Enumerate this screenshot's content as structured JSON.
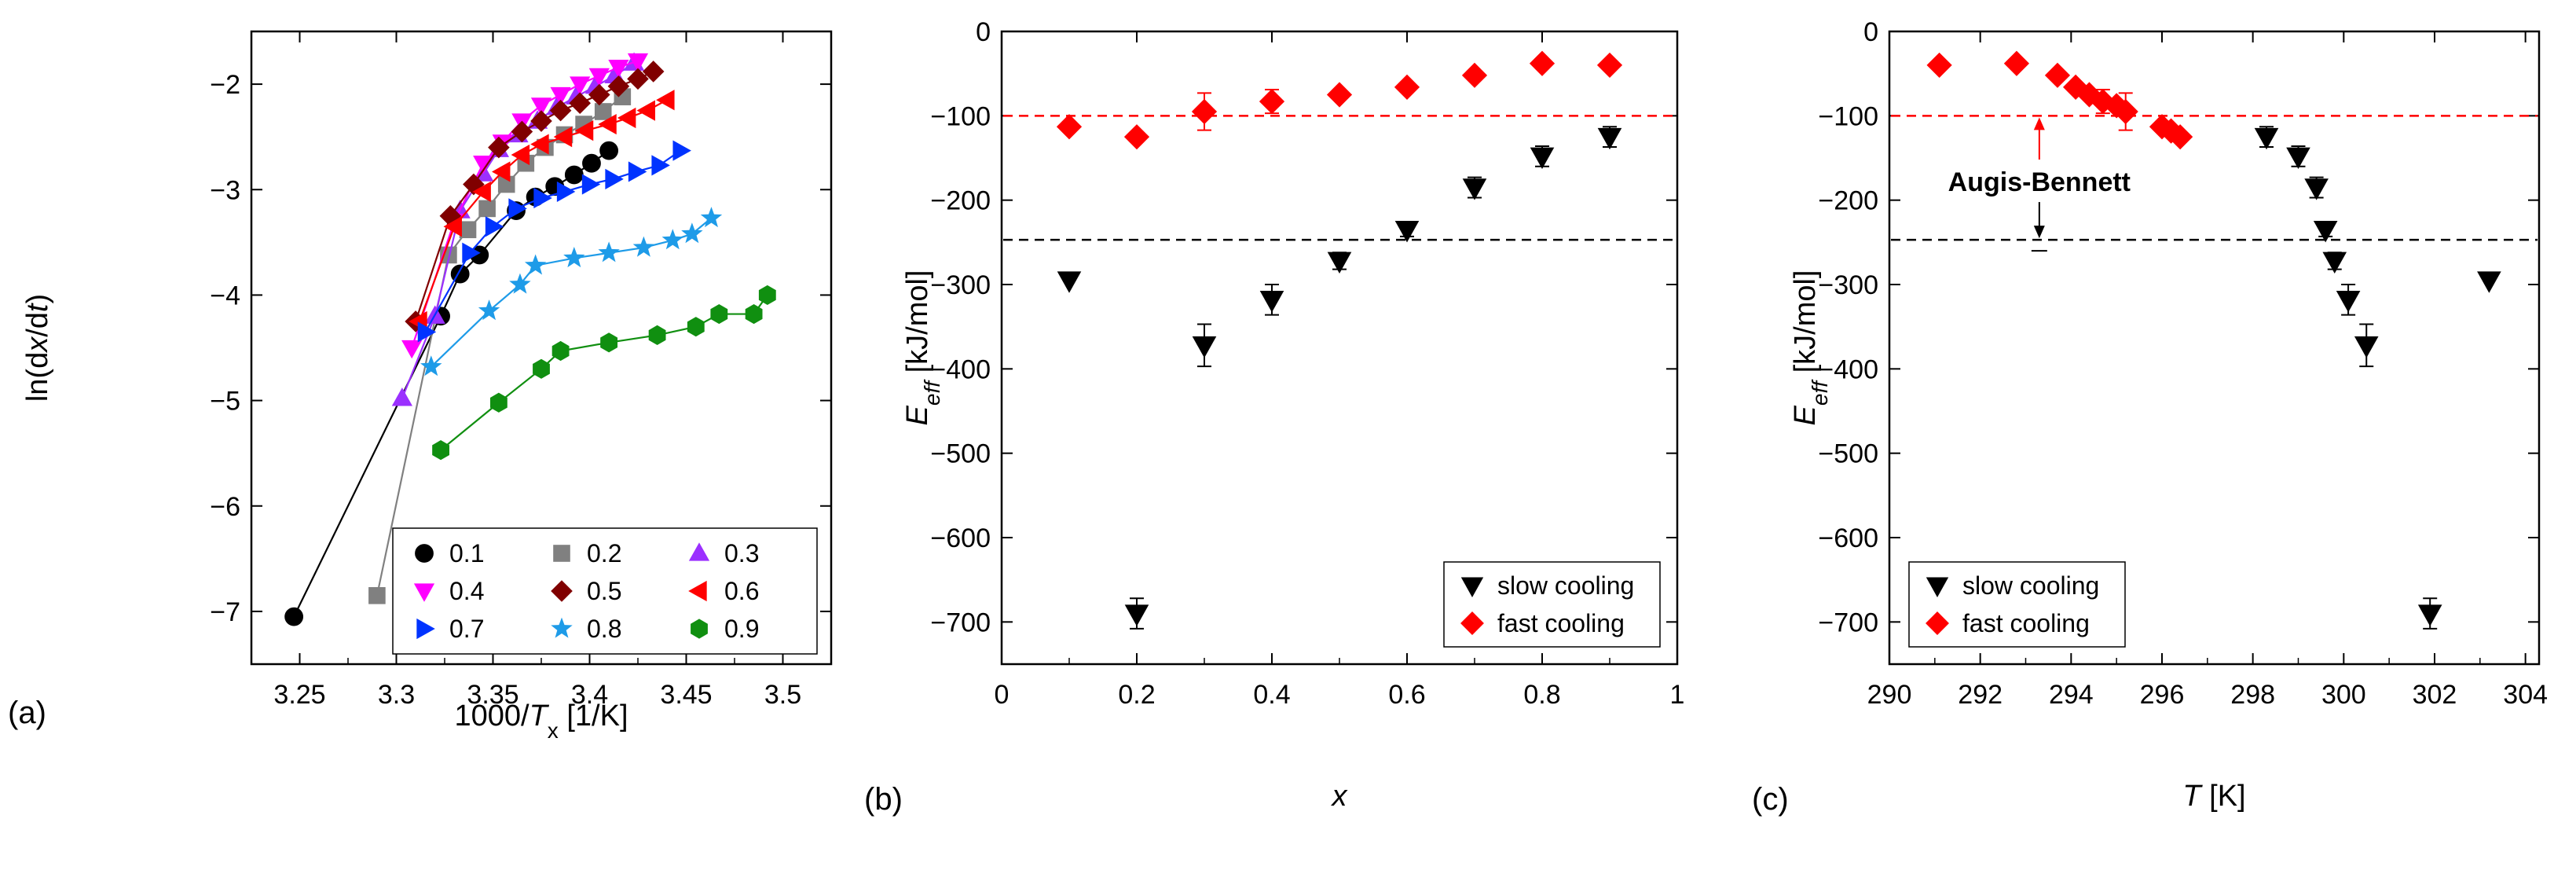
{
  "chart_data": [
    {
      "panel_label": "(a)",
      "type": "scatter",
      "ylabel": "ln(dx/dt)",
      "xlabel": "1000/T_x [1/K]",
      "xlabel_parts": [
        "1000/",
        "T",
        "x",
        " [1/K]"
      ],
      "ylabel_parts": [
        "ln(d",
        "x",
        "/d",
        "t",
        ")"
      ],
      "xlim": [
        3.225,
        3.525
      ],
      "ylim": [
        -7.5,
        -1.5
      ],
      "xticks": [
        3.25,
        3.3,
        3.35,
        3.4,
        3.45,
        3.5
      ],
      "xtick_labels": [
        "3.25",
        "3.3",
        "3.35",
        "3.4",
        "3.45",
        "3.5"
      ],
      "yticks": [
        -7,
        -6,
        -5,
        -4,
        -3,
        -2
      ],
      "ytick_labels": [
        "−7",
        "−6",
        "−5",
        "−4",
        "−3",
        "−2"
      ],
      "legend_position": "bottom-right",
      "series": [
        {
          "name": "0.1",
          "marker": "circle",
          "color": "#000000",
          "x": [
            3.247,
            3.323,
            3.333,
            3.343,
            3.362,
            3.372,
            3.382,
            3.392,
            3.401,
            3.41
          ],
          "y": [
            -7.05,
            -4.2,
            -3.8,
            -3.62,
            -3.2,
            -3.07,
            -2.97,
            -2.86,
            -2.75,
            -2.63
          ]
        },
        {
          "name": "0.2",
          "marker": "square",
          "color": "#808080",
          "x": [
            3.29,
            3.327,
            3.337,
            3.347,
            3.357,
            3.367,
            3.377,
            3.387,
            3.397,
            3.407,
            3.417
          ],
          "y": [
            -6.85,
            -3.62,
            -3.38,
            -3.18,
            -2.95,
            -2.75,
            -2.6,
            -2.48,
            -2.38,
            -2.26,
            -2.12
          ]
        },
        {
          "name": "0.3",
          "marker": "triangle-up",
          "color": "#9B30FF",
          "x": [
            3.303,
            3.32,
            3.333,
            3.345,
            3.353,
            3.363,
            3.373,
            3.383,
            3.393,
            3.403,
            3.413,
            3.423
          ],
          "y": [
            -4.98,
            -4.2,
            -3.2,
            -2.85,
            -2.62,
            -2.48,
            -2.35,
            -2.22,
            -2.12,
            -2.02,
            -1.92,
            -1.8
          ]
        },
        {
          "name": "0.4",
          "marker": "triangle-down",
          "color": "#FF00FF",
          "x": [
            3.308,
            3.33,
            3.345,
            3.355,
            3.365,
            3.375,
            3.385,
            3.395,
            3.405,
            3.415,
            3.425
          ],
          "y": [
            -4.5,
            -3.3,
            -2.75,
            -2.55,
            -2.35,
            -2.2,
            -2.1,
            -2.0,
            -1.92,
            -1.84,
            -1.78
          ]
        },
        {
          "name": "0.5",
          "marker": "diamond",
          "color": "#800000",
          "x": [
            3.31,
            3.328,
            3.34,
            3.353,
            3.365,
            3.375,
            3.385,
            3.395,
            3.405,
            3.415,
            3.425,
            3.433
          ],
          "y": [
            -4.25,
            -3.25,
            -2.95,
            -2.6,
            -2.45,
            -2.35,
            -2.25,
            -2.18,
            -2.1,
            -2.02,
            -1.95,
            -1.88
          ]
        },
        {
          "name": "0.6",
          "marker": "triangle-left",
          "color": "#FF0000",
          "x": [
            3.312,
            3.33,
            3.345,
            3.355,
            3.365,
            3.375,
            3.387,
            3.398,
            3.41,
            3.42,
            3.43,
            3.44
          ],
          "y": [
            -4.25,
            -3.35,
            -3.02,
            -2.83,
            -2.67,
            -2.57,
            -2.5,
            -2.44,
            -2.38,
            -2.32,
            -2.25,
            -2.15
          ]
        },
        {
          "name": "0.7",
          "marker": "triangle-right",
          "color": "#0033FF",
          "x": [
            3.315,
            3.338,
            3.35,
            3.362,
            3.375,
            3.387,
            3.4,
            3.412,
            3.424,
            3.436,
            3.447
          ],
          "y": [
            -4.35,
            -3.6,
            -3.35,
            -3.18,
            -3.08,
            -3.02,
            -2.95,
            -2.9,
            -2.83,
            -2.77,
            -2.63
          ]
        },
        {
          "name": "0.8",
          "marker": "star",
          "color": "#1E9BE8",
          "x": [
            3.318,
            3.348,
            3.364,
            3.372,
            3.392,
            3.41,
            3.428,
            3.443,
            3.453,
            3.463
          ],
          "y": [
            -4.68,
            -4.15,
            -3.9,
            -3.72,
            -3.65,
            -3.6,
            -3.55,
            -3.48,
            -3.42,
            -3.27
          ]
        },
        {
          "name": "0.9",
          "marker": "hexagon",
          "color": "#108F10",
          "x": [
            3.323,
            3.353,
            3.375,
            3.385,
            3.41,
            3.435,
            3.455,
            3.467,
            3.485,
            3.492
          ],
          "y": [
            -5.47,
            -5.02,
            -4.7,
            -4.53,
            -4.45,
            -4.38,
            -4.3,
            -4.18,
            -4.18,
            -4.0
          ]
        }
      ]
    },
    {
      "panel_label": "(b)",
      "type": "scatter",
      "ylabel": "E_eff [kJ/mol]",
      "ylabel_parts": [
        "E",
        "eff",
        " [kJ/mol]"
      ],
      "xlabel": "x",
      "xlim": [
        0,
        1
      ],
      "ylim": [
        -750,
        0
      ],
      "xticks": [
        0,
        0.2,
        0.4,
        0.6,
        0.8,
        1
      ],
      "xtick_labels": [
        "0",
        "0.2",
        "0.4",
        "0.6",
        "0.8",
        "1"
      ],
      "yticks": [
        0,
        -100,
        -200,
        -300,
        -400,
        -500,
        -600,
        -700
      ],
      "ytick_labels": [
        "0",
        "−100",
        "−200",
        "−300",
        "−400",
        "−500",
        "−600",
        "−700"
      ],
      "hlines": [
        {
          "y": -100,
          "color": "#FF0000",
          "style": "dashed"
        },
        {
          "y": -247,
          "color": "#000000",
          "style": "dashed"
        }
      ],
      "legend_position": "bottom-right",
      "series": [
        {
          "name": "slow cooling",
          "marker": "triangle-down",
          "color": "#000000",
          "x": [
            0.1,
            0.2,
            0.3,
            0.4,
            0.5,
            0.6,
            0.7,
            0.8,
            0.9
          ],
          "y": [
            -295,
            -690,
            -372,
            -318,
            -272,
            -235,
            -185,
            -148,
            -125
          ],
          "err": [
            0,
            18,
            25,
            18,
            10,
            8,
            12,
            12,
            12
          ]
        },
        {
          "name": "fast cooling",
          "marker": "diamond",
          "color": "#FF0000",
          "x": [
            0.1,
            0.2,
            0.3,
            0.4,
            0.5,
            0.6,
            0.7,
            0.8,
            0.9
          ],
          "y": [
            -113,
            -125,
            -95,
            -83,
            -75,
            -66,
            -52,
            -38,
            -40
          ],
          "err": [
            0,
            0,
            22,
            14,
            0,
            0,
            0,
            0,
            0
          ]
        }
      ]
    },
    {
      "panel_label": "(c)",
      "type": "scatter",
      "ylabel": "E_eff [kJ/mol]",
      "ylabel_parts": [
        "E",
        "eff",
        " [kJ/mol]"
      ],
      "xlabel": "T [K]",
      "xlabel_parts": [
        "T",
        " [K]"
      ],
      "xlim": [
        290,
        304.3
      ],
      "ylim": [
        -750,
        0
      ],
      "xticks": [
        290,
        292,
        294,
        296,
        298,
        300,
        302,
        304
      ],
      "xtick_labels": [
        "290",
        "292",
        "294",
        "296",
        "298",
        "300",
        "302",
        "304"
      ],
      "yticks": [
        0,
        -100,
        -200,
        -300,
        -400,
        -500,
        -600,
        -700
      ],
      "ytick_labels": [
        "0",
        "−100",
        "−200",
        "−300",
        "−400",
        "−500",
        "−600",
        "−700"
      ],
      "hlines": [
        {
          "y": -100,
          "color": "#FF0000",
          "style": "dashed"
        },
        {
          "y": -247,
          "color": "#000000",
          "style": "dashed"
        }
      ],
      "annotations": [
        {
          "text": "Augis-Bennett",
          "x": 293.3,
          "y": -178
        }
      ],
      "legend_position": "bottom-left",
      "series": [
        {
          "name": "slow cooling",
          "marker": "triangle-down",
          "color": "#000000",
          "x": [
            298.3,
            299.0,
            299.4,
            299.6,
            299.8,
            300.1,
            300.5,
            301.9,
            303.2
          ],
          "y": [
            -125,
            -148,
            -185,
            -235,
            -272,
            -318,
            -372,
            -690,
            -295
          ],
          "err": [
            12,
            12,
            12,
            8,
            10,
            18,
            25,
            18,
            0
          ]
        },
        {
          "name": "fast cooling",
          "marker": "diamond",
          "color": "#FF0000",
          "x": [
            291.1,
            292.8,
            293.7,
            294.1,
            294.4,
            294.7,
            295.0,
            295.2,
            296.0,
            296.2,
            296.4
          ],
          "y": [
            -40,
            -38,
            -52,
            -66,
            -75,
            -83,
            -88,
            -95,
            -113,
            -118,
            -125
          ],
          "err": [
            0,
            0,
            0,
            0,
            0,
            14,
            0,
            22,
            0,
            0,
            0
          ]
        }
      ]
    }
  ]
}
